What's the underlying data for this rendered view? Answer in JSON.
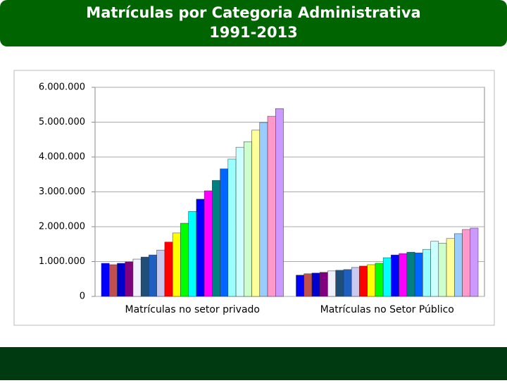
{
  "chart_data": {
    "type": "bar",
    "title": "Matrículas por Categoria Administrativa",
    "subtitle": "1991-2013",
    "categories": [
      "Matrículas no setor privado",
      "Matrículas no Setor Público"
    ],
    "ylim": [
      0,
      6000000
    ],
    "yticks": [
      0,
      {
        "value": 1000000,
        "label": "1.000.000"
      },
      {
        "value": 2000000,
        "label": "2.000.000"
      },
      {
        "value": 3000000,
        "label": "3.000.000"
      },
      {
        "value": 4000000,
        "label": "4.000.000"
      },
      {
        "value": 5000000,
        "label": "5.000.000"
      },
      {
        "value": 6000000,
        "label": "6.000.000"
      }
    ],
    "grid": true,
    "series": [
      {
        "color": "#0000ff",
        "values": [
          950000,
          610000
        ]
      },
      {
        "color": "#c0504d",
        "values": [
          910000,
          650000
        ]
      },
      {
        "color": "#0000cc",
        "values": [
          950000,
          670000
        ]
      },
      {
        "color": "#800080",
        "values": [
          990000,
          690000
        ]
      },
      {
        "color": "#f0f0ff",
        "values": [
          1070000,
          730000
        ]
      },
      {
        "color": "#1f4e79",
        "values": [
          1130000,
          750000
        ]
      },
      {
        "color": "#1f5fbf",
        "values": [
          1190000,
          770000
        ]
      },
      {
        "color": "#c8c8f0",
        "values": [
          1330000,
          830000
        ]
      },
      {
        "color": "#ff0000",
        "values": [
          1560000,
          870000
        ]
      },
      {
        "color": "#ffff00",
        "values": [
          1820000,
          910000
        ]
      },
      {
        "color": "#00ff00",
        "values": [
          2100000,
          950000
        ]
      },
      {
        "color": "#00ffff",
        "values": [
          2440000,
          1110000
        ]
      },
      {
        "color": "#0000ff",
        "values": [
          2790000,
          1190000
        ]
      },
      {
        "color": "#ff00ff",
        "values": [
          3030000,
          1230000
        ]
      },
      {
        "color": "#008080",
        "values": [
          3330000,
          1270000
        ]
      },
      {
        "color": "#0066ff",
        "values": [
          3660000,
          1250000
        ]
      },
      {
        "color": "#99ffff",
        "values": [
          3940000,
          1350000
        ]
      },
      {
        "color": "#ccffff",
        "values": [
          4280000,
          1580000
        ]
      },
      {
        "color": "#ccffcc",
        "values": [
          4440000,
          1520000
        ]
      },
      {
        "color": "#ffff99",
        "values": [
          4770000,
          1660000
        ]
      },
      {
        "color": "#99ccff",
        "values": [
          4990000,
          1800000
        ]
      },
      {
        "color": "#ff99cc",
        "values": [
          5170000,
          1920000
        ]
      },
      {
        "color": "#cc99ff",
        "values": [
          5390000,
          1960000
        ]
      }
    ]
  }
}
